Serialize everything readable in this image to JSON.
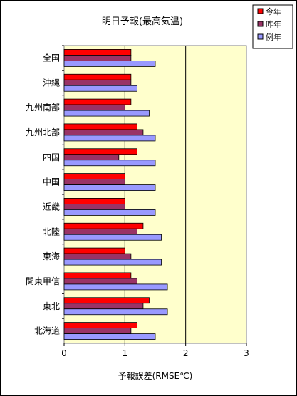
{
  "chart_data": {
    "type": "bar",
    "orientation": "horizontal",
    "title": "明日予報(最高気温)",
    "xlabel": "予報誤差(RMSE℃)",
    "ylabel": "",
    "xlim": [
      0,
      3
    ],
    "xticks": [
      "0",
      "1",
      "2",
      "3"
    ],
    "grid": "vertical-major",
    "legend_position": "top-right",
    "categories": [
      "全国",
      "沖縄",
      "九州南部",
      "九州北部",
      "四国",
      "中国",
      "近畿",
      "北陸",
      "東海",
      "関東甲信",
      "東北",
      "北海道"
    ],
    "series": [
      {
        "name": "今年",
        "color": "#ff0000",
        "values": [
          1.1,
          1.1,
          1.1,
          1.2,
          1.2,
          1.0,
          1.0,
          1.3,
          1.0,
          1.1,
          1.4,
          1.2
        ]
      },
      {
        "name": "昨年",
        "color": "#993366",
        "values": [
          1.1,
          1.1,
          1.0,
          1.3,
          0.9,
          1.0,
          1.0,
          1.2,
          1.1,
          1.2,
          1.3,
          1.1
        ]
      },
      {
        "name": "例年",
        "color": "#9999ff",
        "values": [
          1.5,
          1.2,
          1.4,
          1.5,
          1.5,
          1.5,
          1.5,
          1.6,
          1.6,
          1.7,
          1.7,
          1.5
        ]
      }
    ]
  }
}
